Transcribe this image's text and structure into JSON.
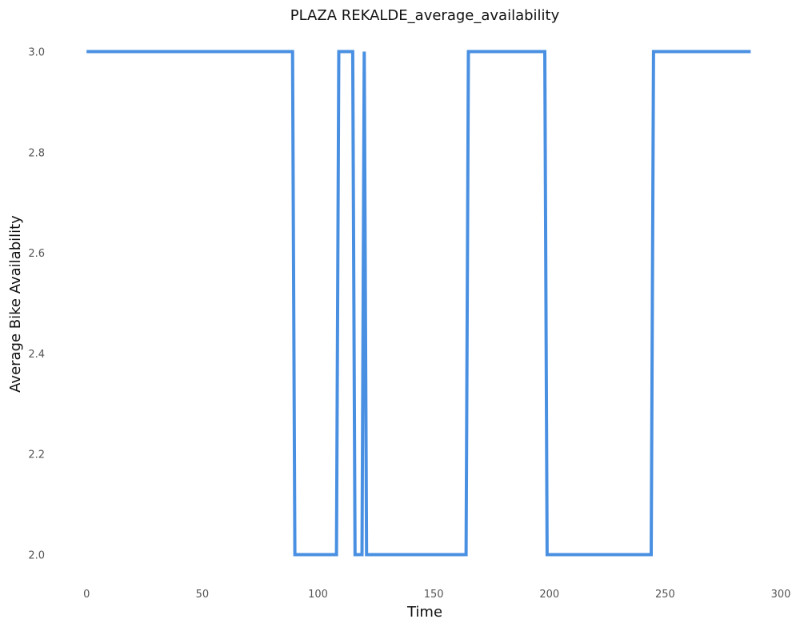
{
  "chart_data": {
    "type": "line",
    "title": "PLAZA REKALDE_average_availability",
    "xlabel": "Time",
    "ylabel": "Average Bike Availability",
    "xlim": [
      -7,
      300
    ],
    "ylim": [
      1.95,
      3.05
    ],
    "x_ticks": [
      0,
      50,
      100,
      150,
      200,
      250,
      300
    ],
    "x_tick_labels": [
      "0",
      "50",
      "100",
      "150",
      "200",
      "250",
      "300"
    ],
    "y_ticks": [
      2.0,
      2.2,
      2.4,
      2.6,
      2.8,
      3.0
    ],
    "y_tick_labels": [
      "2.0",
      "2.2",
      "2.4",
      "2.6",
      "2.8",
      "3.0"
    ],
    "grid": false,
    "legend": "none",
    "series": [
      {
        "color": "#4a90e2",
        "points": [
          [
            0,
            3
          ],
          [
            89,
            3
          ],
          [
            90,
            2
          ],
          [
            108,
            2
          ],
          [
            109,
            3
          ],
          [
            115,
            3
          ],
          [
            116,
            2
          ],
          [
            119,
            2
          ],
          [
            120,
            3
          ],
          [
            121,
            2
          ],
          [
            164,
            2
          ],
          [
            165,
            3
          ],
          [
            198,
            3
          ],
          [
            199,
            2
          ],
          [
            244,
            2
          ],
          [
            245,
            3
          ],
          [
            287,
            3
          ]
        ]
      }
    ]
  }
}
